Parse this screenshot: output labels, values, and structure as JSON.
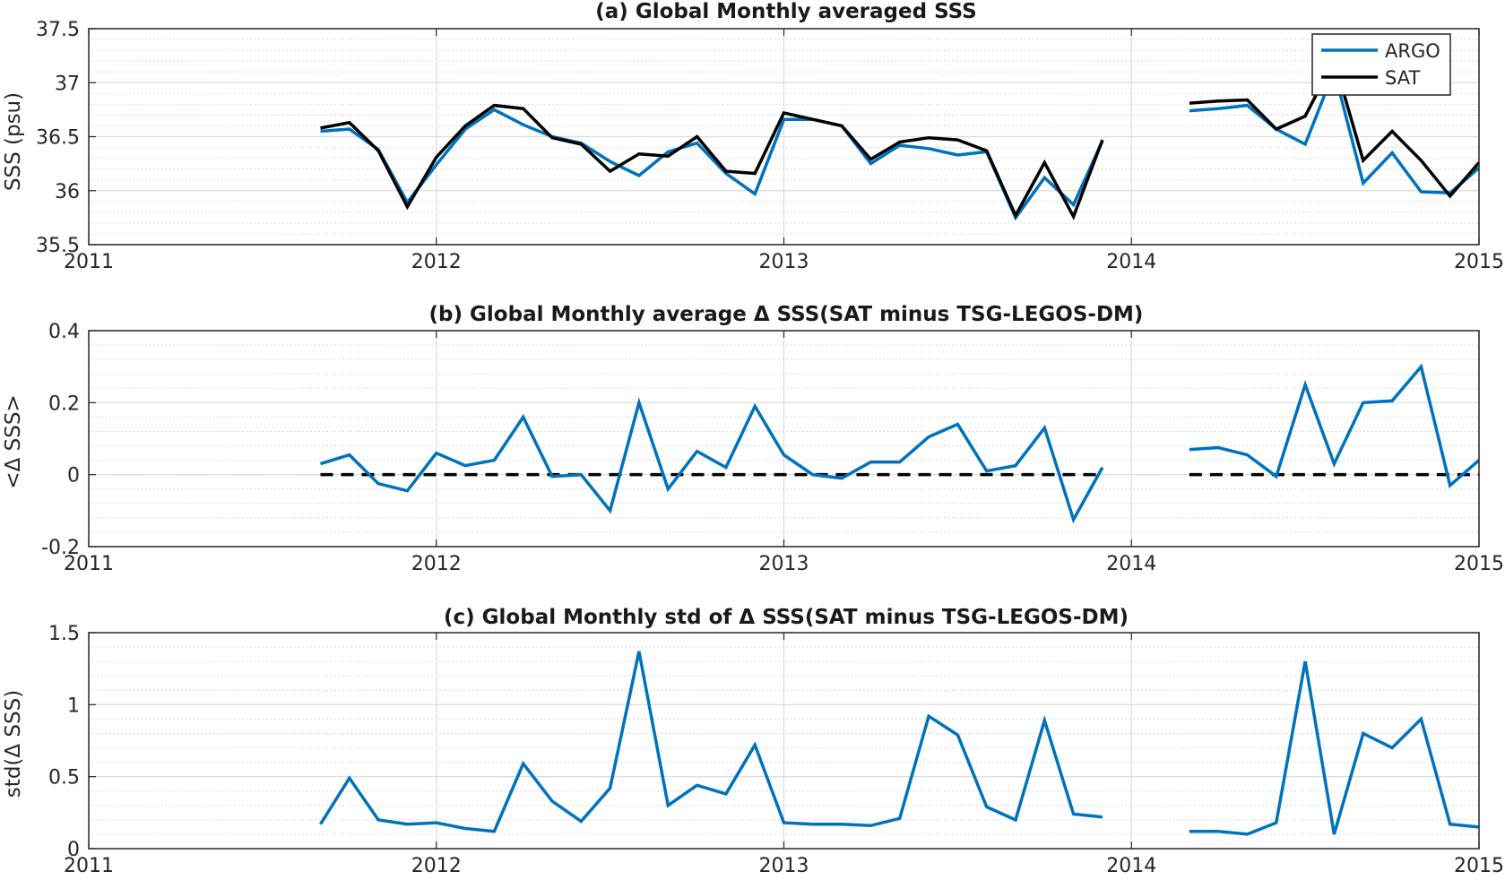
{
  "chart_data": [
    {
      "type": "line",
      "title": "(a) Global Monthly averaged SSS",
      "ylabel": "SSS (psu)",
      "xlabel": "",
      "xlim": [
        "2011",
        "2015"
      ],
      "ylim": [
        35.5,
        37.5
      ],
      "x_ticks": [
        "2011",
        "2012",
        "2013",
        "2014",
        "2015"
      ],
      "y_ticks": [
        "35.5",
        "36",
        "36.5",
        "37",
        "37.5"
      ],
      "grid": true,
      "legend": {
        "placement": "top-right",
        "entries": [
          "ARGO",
          "SAT"
        ]
      },
      "colors": {
        "ARGO": "#0072bd",
        "SAT": "#000000"
      },
      "x": [
        "2011-09",
        "2011-10",
        "2011-11",
        "2011-12",
        "2012-01",
        "2012-02",
        "2012-03",
        "2012-04",
        "2012-05",
        "2012-06",
        "2012-07",
        "2012-08",
        "2012-09",
        "2012-10",
        "2012-11",
        "2012-12",
        "2013-01",
        "2013-02",
        "2013-03",
        "2013-04",
        "2013-05",
        "2013-06",
        "2013-07",
        "2013-08",
        "2013-09",
        "2013-10",
        "2013-11",
        "2013-12",
        "2014-01",
        "2014-02",
        "2014-03",
        "2014-04",
        "2014-05",
        "2014-06",
        "2014-07",
        "2014-08",
        "2014-09",
        "2014-10",
        "2014-11",
        "2014-12",
        "2015-01"
      ],
      "series": [
        {
          "name": "ARGO",
          "values": [
            36.55,
            36.57,
            36.38,
            35.89,
            36.24,
            36.57,
            36.75,
            36.61,
            36.5,
            36.44,
            36.27,
            36.14,
            36.36,
            36.44,
            36.16,
            35.97,
            36.66,
            36.66,
            36.6,
            36.25,
            36.42,
            36.39,
            36.33,
            36.36,
            35.75,
            36.12,
            35.87,
            36.46,
            null,
            null,
            36.74,
            36.76,
            36.79,
            36.57,
            36.43,
            37.11,
            36.07,
            36.35,
            35.99,
            35.98,
            36.21
          ]
        },
        {
          "name": "SAT",
          "values": [
            36.58,
            36.63,
            36.37,
            35.85,
            36.31,
            36.6,
            36.79,
            36.76,
            36.49,
            36.43,
            36.18,
            36.34,
            36.32,
            36.5,
            36.18,
            36.16,
            36.72,
            36.66,
            36.6,
            36.29,
            36.45,
            36.49,
            36.47,
            36.37,
            35.77,
            36.26,
            35.76,
            36.47,
            null,
            null,
            36.81,
            36.83,
            36.84,
            36.57,
            36.69,
            37.21,
            36.28,
            36.55,
            36.28,
            35.95,
            36.26
          ]
        }
      ]
    },
    {
      "type": "line",
      "title": "(b) Global Monthly average Δ SSS(SAT minus TSG-LEGOS-DM)",
      "ylabel": "<Δ SSS>",
      "xlabel": "",
      "xlim": [
        "2011",
        "2015"
      ],
      "ylim": [
        -0.2,
        0.4
      ],
      "x_ticks": [
        "2011",
        "2012",
        "2013",
        "2014",
        "2015"
      ],
      "y_ticks": [
        "-0.2",
        "0",
        "0.2",
        "0.4"
      ],
      "grid": true,
      "colors": {
        "series": "#0072bd",
        "zero_line": "#000000"
      },
      "x": [
        "2011-09",
        "2011-10",
        "2011-11",
        "2011-12",
        "2012-01",
        "2012-02",
        "2012-03",
        "2012-04",
        "2012-05",
        "2012-06",
        "2012-07",
        "2012-08",
        "2012-09",
        "2012-10",
        "2012-11",
        "2012-12",
        "2013-01",
        "2013-02",
        "2013-03",
        "2013-04",
        "2013-05",
        "2013-06",
        "2013-07",
        "2013-08",
        "2013-09",
        "2013-10",
        "2013-11",
        "2013-12",
        "2014-01",
        "2014-02",
        "2014-03",
        "2014-04",
        "2014-05",
        "2014-06",
        "2014-07",
        "2014-08",
        "2014-09",
        "2014-10",
        "2014-11",
        "2014-12",
        "2015-01"
      ],
      "series": [
        {
          "values": [
            0.03,
            0.055,
            -0.025,
            -0.045,
            0.06,
            0.025,
            0.04,
            0.16,
            -0.005,
            0.0,
            -0.1,
            0.2,
            -0.04,
            0.065,
            0.02,
            0.19,
            0.055,
            0.0,
            -0.01,
            0.035,
            0.035,
            0.105,
            0.14,
            0.01,
            0.025,
            0.13,
            -0.125,
            0.02,
            null,
            null,
            0.07,
            0.075,
            0.055,
            -0.005,
            0.25,
            0.03,
            0.2,
            0.205,
            0.3,
            -0.03,
            0.04
          ]
        }
      ],
      "reference_line": 0
    },
    {
      "type": "line",
      "title": "(c) Global Monthly std of Δ SSS(SAT minus TSG-LEGOS-DM)",
      "ylabel": "std(Δ SSS)",
      "xlabel": "",
      "xlim": [
        "2011",
        "2015"
      ],
      "ylim": [
        0,
        1.5
      ],
      "x_ticks": [
        "2011",
        "2012",
        "2013",
        "2014",
        "2015"
      ],
      "y_ticks": [
        "0",
        "0.5",
        "1",
        "1.5"
      ],
      "grid": true,
      "colors": {
        "series": "#0072bd"
      },
      "x": [
        "2011-09",
        "2011-10",
        "2011-11",
        "2011-12",
        "2012-01",
        "2012-02",
        "2012-03",
        "2012-04",
        "2012-05",
        "2012-06",
        "2012-07",
        "2012-08",
        "2012-09",
        "2012-10",
        "2012-11",
        "2012-12",
        "2013-01",
        "2013-02",
        "2013-03",
        "2013-04",
        "2013-05",
        "2013-06",
        "2013-07",
        "2013-08",
        "2013-09",
        "2013-10",
        "2013-11",
        "2013-12",
        "2014-01",
        "2014-02",
        "2014-03",
        "2014-04",
        "2014-05",
        "2014-06",
        "2014-07",
        "2014-08",
        "2014-09",
        "2014-10",
        "2014-11",
        "2014-12",
        "2015-01"
      ],
      "series": [
        {
          "values": [
            0.17,
            0.49,
            0.2,
            0.17,
            0.18,
            0.14,
            0.12,
            0.59,
            0.33,
            0.19,
            0.42,
            1.37,
            0.3,
            0.44,
            0.38,
            0.72,
            0.18,
            0.17,
            0.17,
            0.16,
            0.21,
            0.92,
            0.79,
            0.29,
            0.2,
            0.89,
            0.24,
            0.22,
            null,
            null,
            0.12,
            0.12,
            0.1,
            0.18,
            1.3,
            0.1,
            0.8,
            0.7,
            0.9,
            0.17,
            0.15
          ]
        }
      ]
    }
  ]
}
